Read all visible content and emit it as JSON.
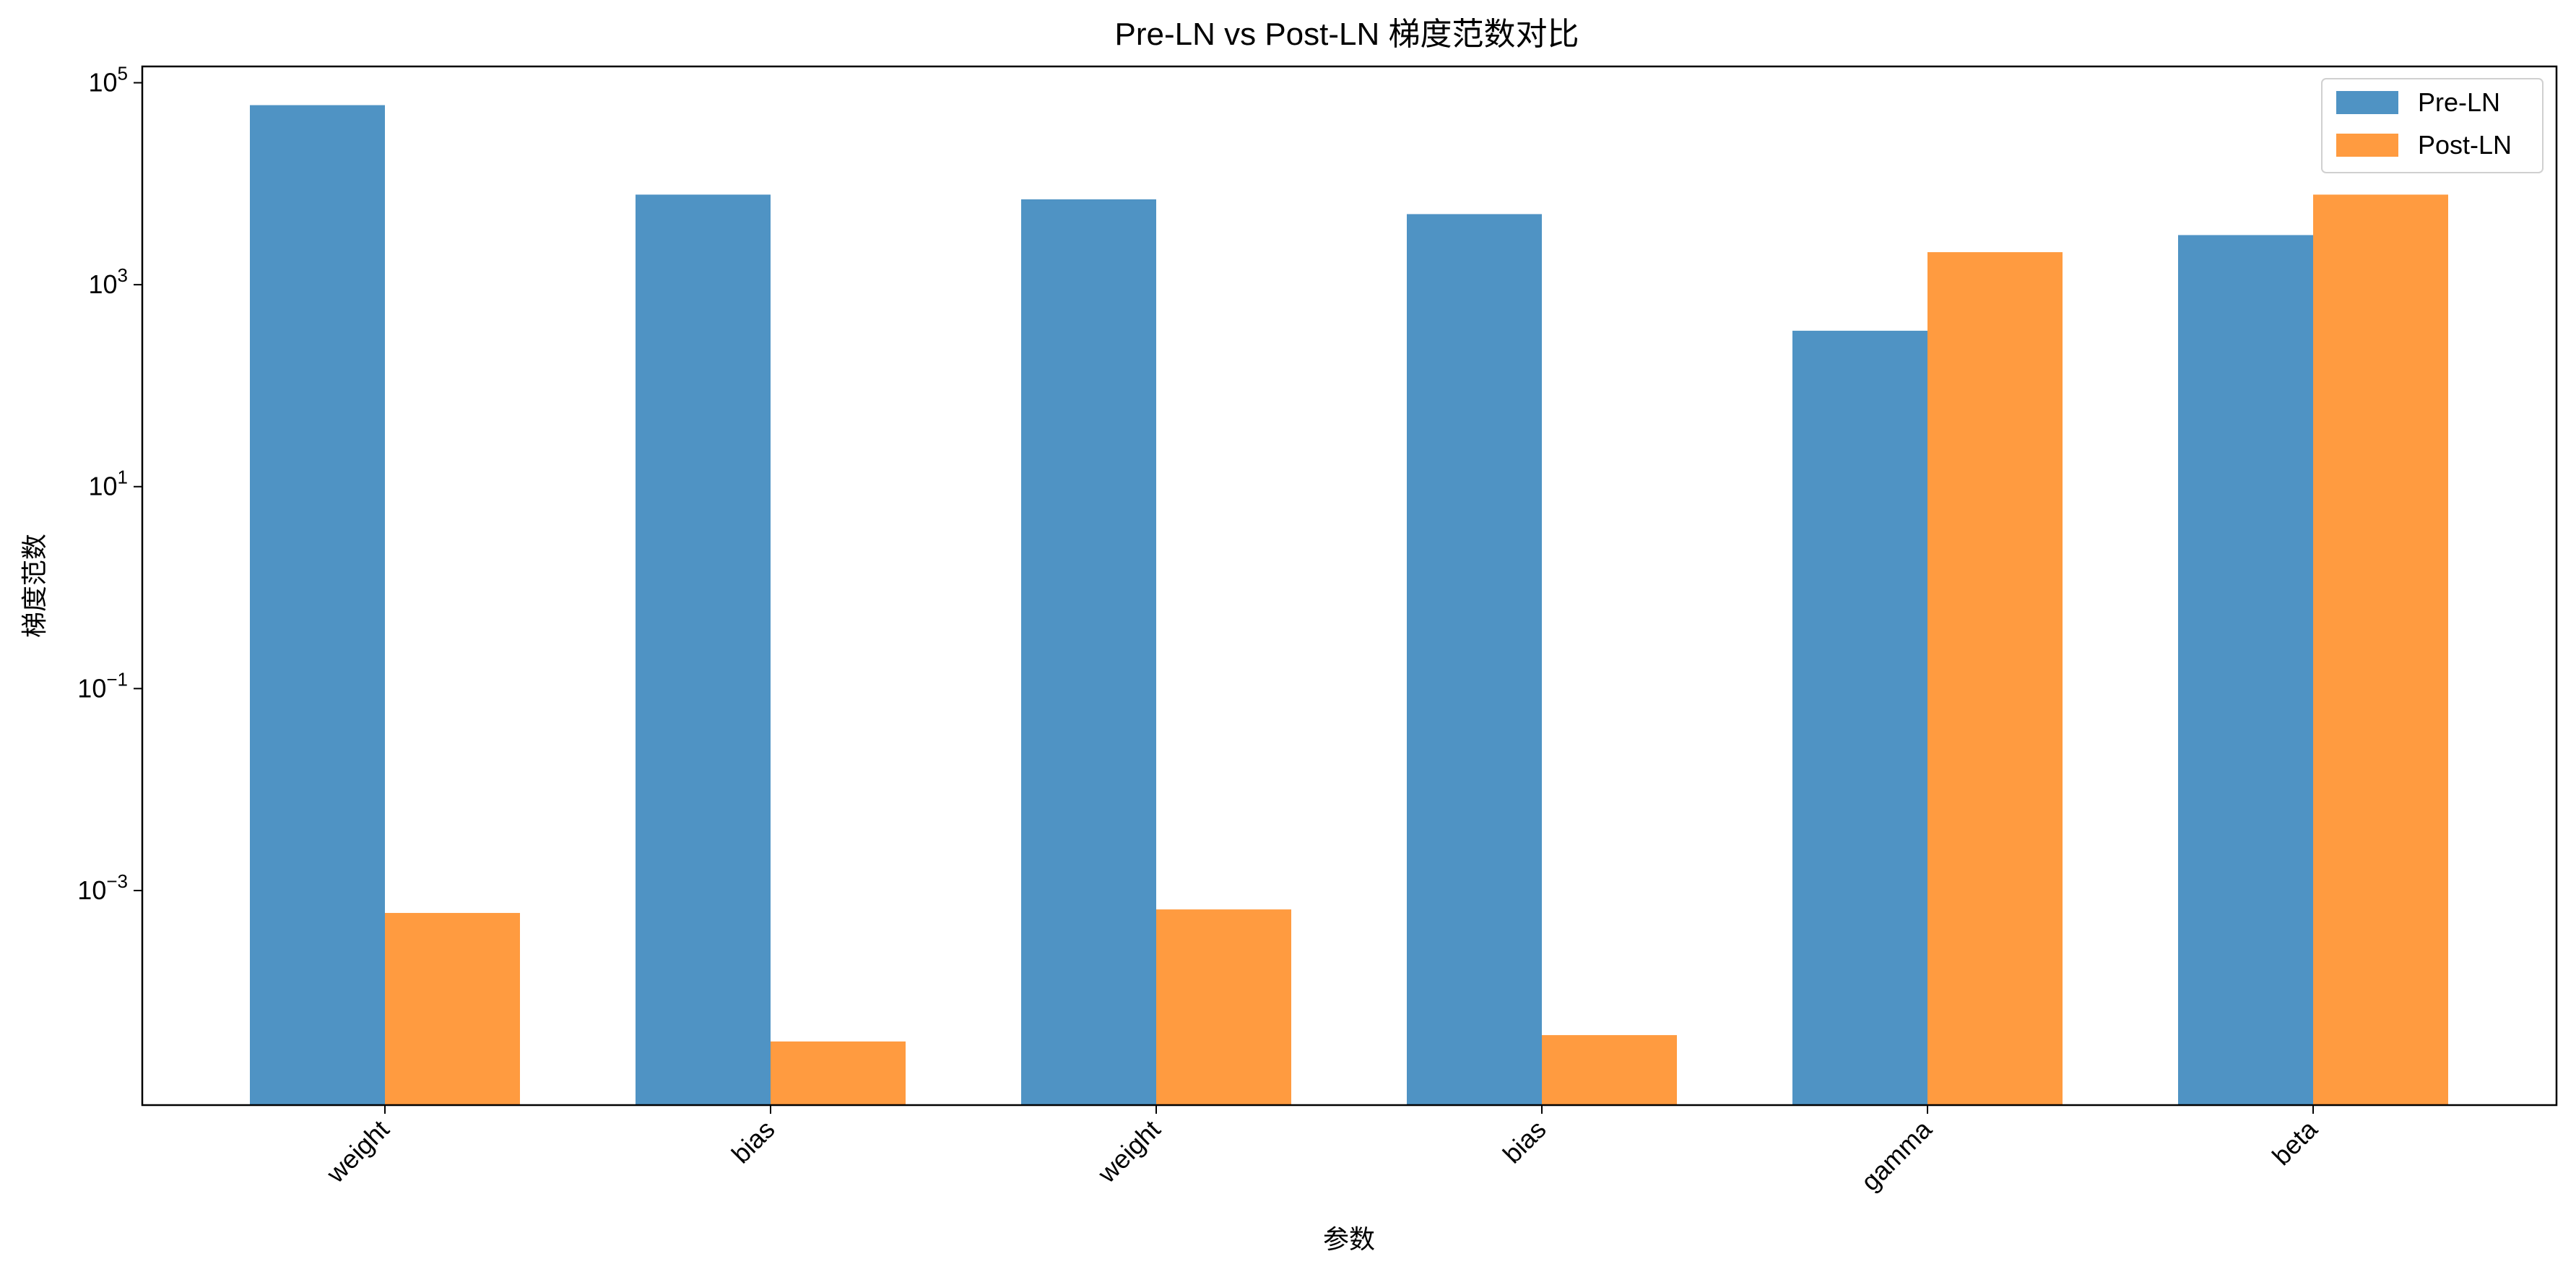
{
  "chart_data": {
    "type": "bar",
    "title": "Pre-LN vs Post-LN 梯度范数对比",
    "xlabel": "参数",
    "ylabel": "梯度范数",
    "yscale": "log",
    "ylim": [
      7.5e-06,
      145000
    ],
    "yticks": [
      {
        "value": 100000,
        "base": "10",
        "exp": "5"
      },
      {
        "value": 1000,
        "base": "10",
        "exp": "3"
      },
      {
        "value": 10,
        "base": "10",
        "exp": "1"
      },
      {
        "value": 0.1,
        "base": "10",
        "exp": "−1"
      },
      {
        "value": 0.001,
        "base": "10",
        "exp": "−3"
      }
    ],
    "categories": [
      "weight",
      "bias",
      "weight",
      "bias",
      "gamma",
      "beta"
    ],
    "series": [
      {
        "name": "Pre-LN",
        "color": "#4f93c4",
        "values": [
          60000,
          7800,
          7000,
          5000,
          350,
          3100
        ]
      },
      {
        "name": "Post-LN",
        "color": "#ff9b40",
        "values": [
          0.0006,
          3.2e-05,
          0.00065,
          3.7e-05,
          2100,
          7800
        ]
      }
    ],
    "legend": {
      "position": "top-right"
    },
    "grid": false
  }
}
